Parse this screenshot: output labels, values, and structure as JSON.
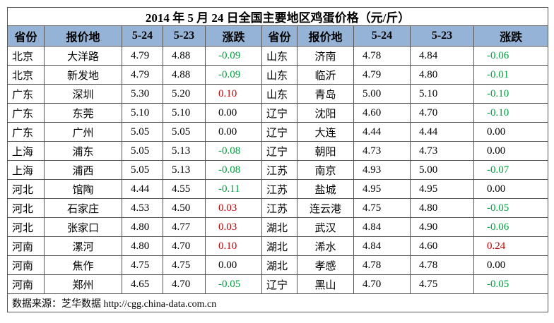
{
  "table": {
    "title": "2014 年 5 月 24 日全国主要地区鸡蛋价格（元/斤）",
    "header": [
      "省份",
      "报价地",
      "5-24",
      "5-23",
      "涨跌",
      "省份",
      "报价地",
      "5-24",
      "5-23",
      "涨跌"
    ],
    "rows": [
      [
        "北京",
        "大洋路",
        "4.79",
        "4.88",
        "-0.09",
        "山东",
        "济南",
        "4.78",
        "4.84",
        "-0.06"
      ],
      [
        "北京",
        "新发地",
        "4.79",
        "4.88",
        "-0.09",
        "山东",
        "临沂",
        "4.79",
        "4.80",
        "-0.01"
      ],
      [
        "广东",
        "深圳",
        "5.30",
        "5.20",
        "0.10",
        "山东",
        "青岛",
        "5.00",
        "5.10",
        "-0.10"
      ],
      [
        "广东",
        "东莞",
        "5.10",
        "5.10",
        "0.00",
        "辽宁",
        "沈阳",
        "4.60",
        "4.70",
        "-0.10"
      ],
      [
        "广东",
        "广州",
        "5.05",
        "5.05",
        "0.00",
        "辽宁",
        "大连",
        "4.44",
        "4.44",
        "0.00"
      ],
      [
        "上海",
        "浦东",
        "5.05",
        "5.13",
        "-0.08",
        "辽宁",
        "朝阳",
        "4.73",
        "4.73",
        "0.00"
      ],
      [
        "上海",
        "浦西",
        "5.05",
        "5.13",
        "-0.08",
        "江苏",
        "南京",
        "4.93",
        "5.00",
        "-0.07"
      ],
      [
        "河北",
        "馆陶",
        "4.44",
        "4.55",
        "-0.11",
        "江苏",
        "盐城",
        "4.95",
        "4.95",
        "0.00"
      ],
      [
        "河北",
        "石家庄",
        "4.53",
        "4.50",
        "0.03",
        "江苏",
        "连云港",
        "4.75",
        "4.80",
        "-0.05"
      ],
      [
        "河北",
        "张家口",
        "4.80",
        "4.77",
        "0.03",
        "湖北",
        "武汉",
        "4.84",
        "4.90",
        "-0.06"
      ],
      [
        "河南",
        "漯河",
        "4.80",
        "4.70",
        "0.10",
        "湖北",
        "浠水",
        "4.84",
        "4.60",
        "0.24"
      ],
      [
        "河南",
        "焦作",
        "4.75",
        "4.75",
        "0.00",
        "湖北",
        "孝感",
        "4.78",
        "4.78",
        "0.00"
      ],
      [
        "河南",
        "郑州",
        "4.65",
        "4.70",
        "-0.05",
        "辽宁",
        "黑山",
        "4.70",
        "4.75",
        "-0.05"
      ]
    ],
    "source": "数据来源：芝华数据 http://cgg.china-data.com.cn"
  }
}
